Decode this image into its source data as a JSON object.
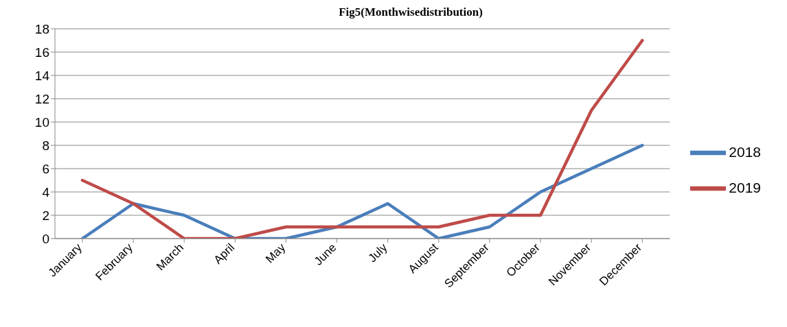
{
  "chart_data": {
    "type": "line",
    "title": "Fig5(Monthwisedistribution)",
    "categories": [
      "January",
      "February",
      "March",
      "April",
      "May",
      "June",
      "July",
      "August",
      "September",
      "October",
      "November",
      "December"
    ],
    "series": [
      {
        "name": "2018",
        "color": "#4a7ebb",
        "values": [
          0,
          3,
          2,
          0,
          0,
          1,
          3,
          0,
          1,
          4,
          6,
          8
        ]
      },
      {
        "name": "2019",
        "color": "#be4b48",
        "values": [
          5,
          3,
          0,
          0,
          1,
          1,
          1,
          1,
          2,
          2,
          11,
          17
        ]
      }
    ],
    "ylim": [
      0,
      18
    ],
    "yticks": [
      0,
      2,
      4,
      6,
      8,
      10,
      12,
      14,
      16,
      18
    ],
    "grid": "y",
    "legend": "right",
    "marker": "none",
    "line_style": "solid"
  }
}
